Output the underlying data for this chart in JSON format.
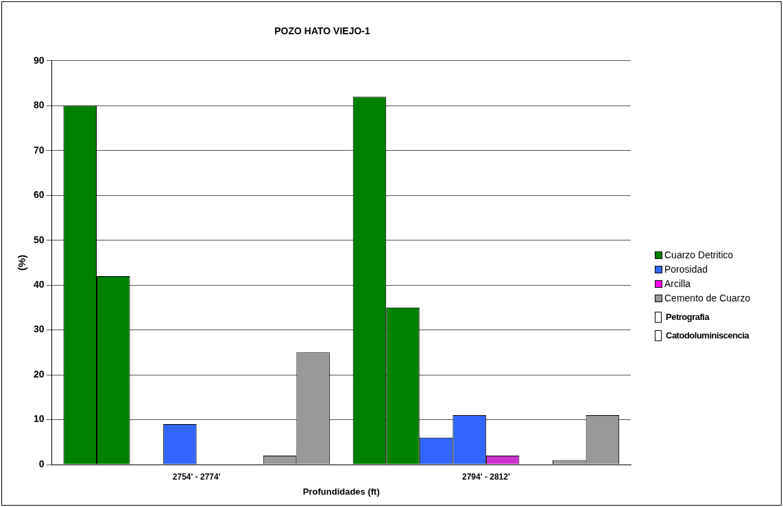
{
  "chart_data": {
    "type": "bar",
    "title": "POZO HATO VIEJO-1",
    "xlabel": "Profundidades (ft)",
    "ylabel": "(%)",
    "categories": [
      "2754' - 2774'",
      "2794' - 2812'"
    ],
    "series": [
      {
        "color": "#008000",
        "values": [
          80,
          82
        ]
      },
      {
        "name": "Cuarzo Detritico",
        "color": "#008000",
        "values": [
          42,
          35
        ]
      },
      {
        "color": "#3366ff",
        "values": [
          null,
          6
        ]
      },
      {
        "name": "Porosidad",
        "color": "#3366ff",
        "values": [
          9,
          11
        ]
      },
      {
        "color": "#cc33cc",
        "values": [
          null,
          2
        ]
      },
      {
        "name": "Arcilla",
        "color": "#ff00ff",
        "values": [
          null,
          null
        ]
      },
      {
        "color": "#999999",
        "values": [
          2,
          1
        ]
      },
      {
        "name": "Cemento de Cuarzo",
        "color": "#999999",
        "values": [
          25,
          11
        ]
      }
    ],
    "annotations": [
      "Petrografia",
      "Catodoluminiscencia"
    ],
    "ylim": [
      0,
      90
    ],
    "yticks": [
      0,
      10,
      20,
      30,
      40,
      50,
      60,
      70,
      80,
      90
    ],
    "grid": "y",
    "legend": "right"
  }
}
